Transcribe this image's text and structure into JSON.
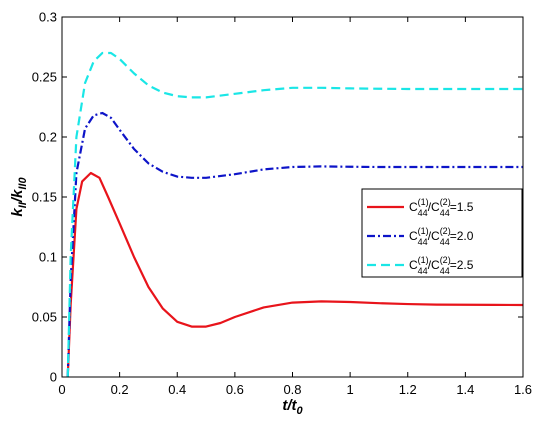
{
  "chart_data": {
    "type": "line",
    "xlabel": {
      "main": "t/t",
      "sub": "0"
    },
    "ylabel": {
      "main": "k",
      "sub1": "II",
      "mid": "/k",
      "sub2": "II0"
    },
    "xlim": [
      0,
      1.6
    ],
    "ylim": [
      0,
      0.3
    ],
    "x_ticks": [
      "0",
      "0.2",
      "0.4",
      "0.6",
      "0.8",
      "1",
      "1.2",
      "1.4",
      "1.6"
    ],
    "y_ticks": [
      "0",
      "0.05",
      "0.1",
      "0.15",
      "0.2",
      "0.25",
      "0.3"
    ],
    "grid": false,
    "legend_position": "right",
    "series": [
      {
        "name": "C44(1)/C44(2)=1.5",
        "legend": {
          "base": "C",
          "sub": "44",
          "sup": "(1)",
          "mid": "/C",
          "sub2": "44",
          "sup2": "(2)",
          "tail": "=1.5"
        },
        "color": "#e8141b",
        "dash": "solid",
        "points": [
          [
            0.02,
            0
          ],
          [
            0.03,
            0.06
          ],
          [
            0.05,
            0.14
          ],
          [
            0.07,
            0.163
          ],
          [
            0.1,
            0.17
          ],
          [
            0.13,
            0.166
          ],
          [
            0.16,
            0.15
          ],
          [
            0.2,
            0.128
          ],
          [
            0.25,
            0.1
          ],
          [
            0.3,
            0.075
          ],
          [
            0.35,
            0.057
          ],
          [
            0.4,
            0.046
          ],
          [
            0.45,
            0.042
          ],
          [
            0.5,
            0.042
          ],
          [
            0.55,
            0.045
          ],
          [
            0.6,
            0.05
          ],
          [
            0.7,
            0.058
          ],
          [
            0.8,
            0.062
          ],
          [
            0.9,
            0.063
          ],
          [
            1.0,
            0.0625
          ],
          [
            1.1,
            0.0615
          ],
          [
            1.2,
            0.0608
          ],
          [
            1.3,
            0.0603
          ],
          [
            1.4,
            0.0602
          ],
          [
            1.5,
            0.0601
          ],
          [
            1.6,
            0.06
          ]
        ]
      },
      {
        "name": "C44(1)/C44(2)=2.0",
        "legend": {
          "base": "C",
          "sub": "44",
          "sup": "(1)",
          "mid": "/C",
          "sub2": "44",
          "sup2": "(2)",
          "tail": "=2.0"
        },
        "color": "#0d14c8",
        "dash": "8,3,2,3",
        "points": [
          [
            0.02,
            0
          ],
          [
            0.03,
            0.08
          ],
          [
            0.05,
            0.17
          ],
          [
            0.08,
            0.207
          ],
          [
            0.11,
            0.218
          ],
          [
            0.14,
            0.22
          ],
          [
            0.17,
            0.216
          ],
          [
            0.2,
            0.206
          ],
          [
            0.25,
            0.19
          ],
          [
            0.3,
            0.178
          ],
          [
            0.35,
            0.171
          ],
          [
            0.4,
            0.167
          ],
          [
            0.45,
            0.166
          ],
          [
            0.5,
            0.166
          ],
          [
            0.6,
            0.169
          ],
          [
            0.7,
            0.173
          ],
          [
            0.8,
            0.175
          ],
          [
            0.9,
            0.1755
          ],
          [
            1.0,
            0.1752
          ],
          [
            1.1,
            0.175
          ],
          [
            1.2,
            0.175
          ],
          [
            1.3,
            0.175
          ],
          [
            1.4,
            0.175
          ],
          [
            1.5,
            0.175
          ],
          [
            1.6,
            0.175
          ]
        ]
      },
      {
        "name": "C44(1)/C44(2)=2.5",
        "legend": {
          "base": "C",
          "sub": "44",
          "sup": "(1)",
          "mid": "/C",
          "sub2": "44",
          "sup2": "(2)",
          "tail": "=2.5"
        },
        "color": "#1ae6e6",
        "dash": "9,5",
        "points": [
          [
            0.02,
            0
          ],
          [
            0.03,
            0.1
          ],
          [
            0.05,
            0.2
          ],
          [
            0.08,
            0.245
          ],
          [
            0.11,
            0.263
          ],
          [
            0.14,
            0.27
          ],
          [
            0.17,
            0.27
          ],
          [
            0.2,
            0.265
          ],
          [
            0.25,
            0.253
          ],
          [
            0.3,
            0.243
          ],
          [
            0.35,
            0.237
          ],
          [
            0.4,
            0.234
          ],
          [
            0.45,
            0.233
          ],
          [
            0.5,
            0.233
          ],
          [
            0.6,
            0.236
          ],
          [
            0.7,
            0.239
          ],
          [
            0.8,
            0.241
          ],
          [
            0.9,
            0.241
          ],
          [
            1.0,
            0.2405
          ],
          [
            1.1,
            0.2402
          ],
          [
            1.2,
            0.24
          ],
          [
            1.3,
            0.24
          ],
          [
            1.4,
            0.24
          ],
          [
            1.5,
            0.24
          ],
          [
            1.6,
            0.24
          ]
        ]
      }
    ]
  }
}
